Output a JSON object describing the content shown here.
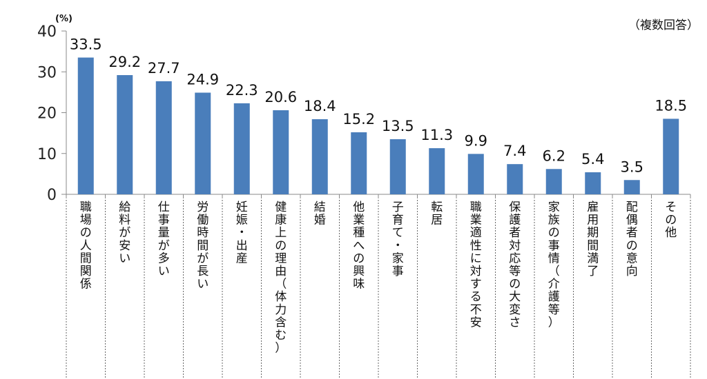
{
  "chart_data": {
    "type": "bar",
    "categories": [
      "職場の人間関係",
      "給料が安い",
      "仕事量が多い",
      "労働時間が長い",
      "妊娠・出産",
      "健康上の理由（体力含む）",
      "結婚",
      "他業種への興味",
      "子育て・家事",
      "転居",
      "職業適性に対する不安",
      "保護者対応等の大変さ",
      "家族の事情（介護等）",
      "雇用期間満了",
      "配偶者の意向",
      "その他"
    ],
    "values": [
      33.5,
      29.2,
      27.7,
      24.9,
      22.3,
      20.6,
      18.4,
      15.2,
      13.5,
      11.3,
      9.9,
      7.4,
      6.2,
      5.4,
      3.5,
      18.5
    ],
    "value_labels": [
      "33.5",
      "29.2",
      "27.7",
      "24.9",
      "22.3",
      "20.6",
      "18.4",
      "15.2",
      "13.5",
      "11.3",
      "9.9",
      "7.4",
      "6.2",
      "5.4",
      "3.5",
      "18.5"
    ],
    "yticks": [
      "0",
      "10",
      "20",
      "30",
      "40"
    ],
    "ylim": [
      0,
      40
    ],
    "unit_label": "(%)",
    "note": "（複数回答）",
    "bar_color": "#4a7ebb",
    "grid": false,
    "legend": "none"
  }
}
